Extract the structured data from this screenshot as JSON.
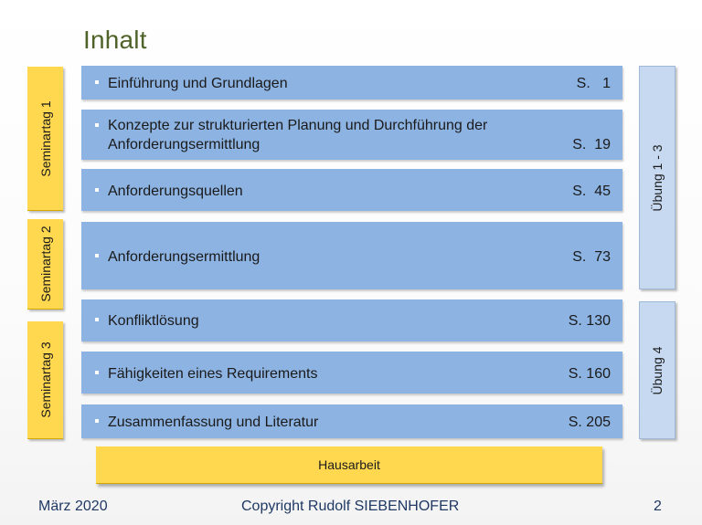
{
  "title": "Inhalt",
  "seminartage": [
    "Seminartag 1",
    "Seminartag 2",
    "Seminartag 3"
  ],
  "rows": [
    {
      "text": "Einführung und Grundlagen",
      "page": "S.   1"
    },
    {
      "text_line1": "Konzepte zur strukturierten Planung und Durchführung der",
      "text_line2": "Anforderungsermittlung",
      "page": "S.  19"
    },
    {
      "text": "Anforderungsquellen",
      "page": "S.  45"
    },
    {
      "text": "Anforderungsermittlung",
      "page": "S.  73"
    },
    {
      "text": "Konfliktlösung",
      "page": "S. 130"
    },
    {
      "text": "Fähigkeiten eines Requirements",
      "page": "S. 160"
    },
    {
      "text": "Zusammenfassung und Literatur",
      "page": "S. 205"
    }
  ],
  "uebungen": [
    "Übung 1 - 3",
    "Übung 4"
  ],
  "hausarbeit": "Hausarbeit",
  "footer": {
    "date": "März 2020",
    "copyright": "Copyright Rudolf SIEBENHOFER",
    "page_number": "2"
  },
  "colors": {
    "title": "#4f6228",
    "row_background": "#8db3e2",
    "seminartag_background": "#ffd84f",
    "uebung_background": "#c6d9f1",
    "footer_text": "#1f3864"
  }
}
